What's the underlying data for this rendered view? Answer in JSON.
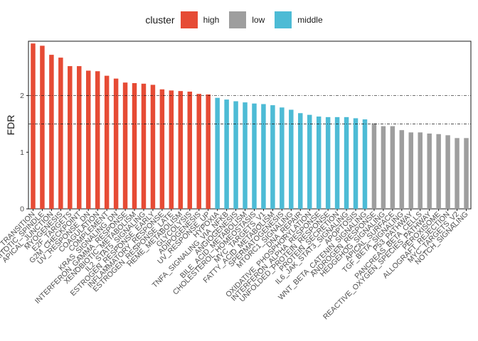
{
  "chart_data": {
    "type": "bar",
    "ylabel": "FDR",
    "xlabel": "",
    "ylim": [
      0,
      2.96
    ],
    "yticks": [
      0,
      1,
      2
    ],
    "hlines": [
      2.0,
      1.5
    ],
    "legend": {
      "title": "cluster",
      "position": "top",
      "entries": [
        {
          "name": "high",
          "color": "#E64B35"
        },
        {
          "name": "low",
          "color": "#9E9E9E"
        },
        {
          "name": "middle",
          "color": "#4DBBD5"
        }
      ]
    },
    "categories": [
      "EPITHELIAL_MESENCHYMAL_TRANSITION",
      "MITOTIC_SPINDLE",
      "APICAL_JUNCTION",
      "MYOGENESIS",
      "E2F_TARGETS",
      "G2M_CHECKPOINT",
      "UV_RESPONSE_DN",
      "COAGULATION",
      "COMPLEMENT",
      "KRAS_SIGNALING_DN",
      "INTERFERON_GAMMA_RESPONSE",
      "XENOBIOTIC_METABOLISM",
      "IL2_STAT5_SIGNALING",
      "ESTROGEN_RESPONSE_EARLY",
      "INFLAMMATORY_RESPONSE",
      "ESTROGEN_RESPONSE_LATE",
      "HEME_METABOLISM",
      "GLYCOLYSIS",
      "ADIPOGENESIS",
      "UV_RESPONSE_UP",
      "HYPOXIA",
      "TNFA_SIGNALING_VIA_NFKB",
      "ANGIOGENESIS",
      "BILE_ACID_METABOLISM",
      "CHOLESTEROL_HOMEOSTASIS",
      "MYC_TARGETS_V1",
      "FATTY_ACID_METABOLISM",
      "SPERMATOGENESIS",
      "MTORC1_SIGNALING",
      "DNA_REPAIR",
      "OXIDATIVE_PHOSPHORYLATION",
      "INTERFERON_ALPHA_RESPONSE",
      "UNFOLDED_PROTEIN_RESPONSE",
      "PROTEIN_SECRETION",
      "IL6_JAK_STAT3_SIGNALING",
      "APOPTOSIS",
      "WNT_BETA_CATENIN_SIGNALING",
      "ANDROGEN_RESPONSE",
      "HEDGEHOG_SIGNALING",
      "APICAL_SURFACE",
      "TGF_BETA_SIGNALING",
      "P53_PATHWAY",
      "PANCREAS_BETA_CELLS",
      "REACTIVE_OXYGEN_SPECIES_PATHWAY",
      "PEROXISOME",
      "ALLOGRAFT_REJECTION",
      "MYC_TARGETS_V2",
      "NOTCH_SIGNALING"
    ],
    "values": [
      2.92,
      2.88,
      2.72,
      2.67,
      2.52,
      2.52,
      2.44,
      2.43,
      2.35,
      2.3,
      2.23,
      2.22,
      2.21,
      2.19,
      2.11,
      2.09,
      2.08,
      2.07,
      2.03,
      2.02,
      1.96,
      1.93,
      1.9,
      1.88,
      1.86,
      1.85,
      1.83,
      1.79,
      1.75,
      1.69,
      1.66,
      1.63,
      1.62,
      1.62,
      1.62,
      1.6,
      1.58,
      1.51,
      1.46,
      1.46,
      1.39,
      1.35,
      1.35,
      1.33,
      1.32,
      1.3,
      1.25,
      1.25
    ],
    "cluster": [
      "high",
      "high",
      "high",
      "high",
      "high",
      "high",
      "high",
      "high",
      "high",
      "high",
      "high",
      "high",
      "high",
      "high",
      "high",
      "high",
      "high",
      "high",
      "high",
      "high",
      "middle",
      "middle",
      "middle",
      "middle",
      "middle",
      "middle",
      "middle",
      "middle",
      "middle",
      "middle",
      "middle",
      "middle",
      "middle",
      "middle",
      "middle",
      "middle",
      "middle",
      "low",
      "low",
      "low",
      "low",
      "low",
      "low",
      "low",
      "low",
      "low",
      "low",
      "low"
    ]
  }
}
